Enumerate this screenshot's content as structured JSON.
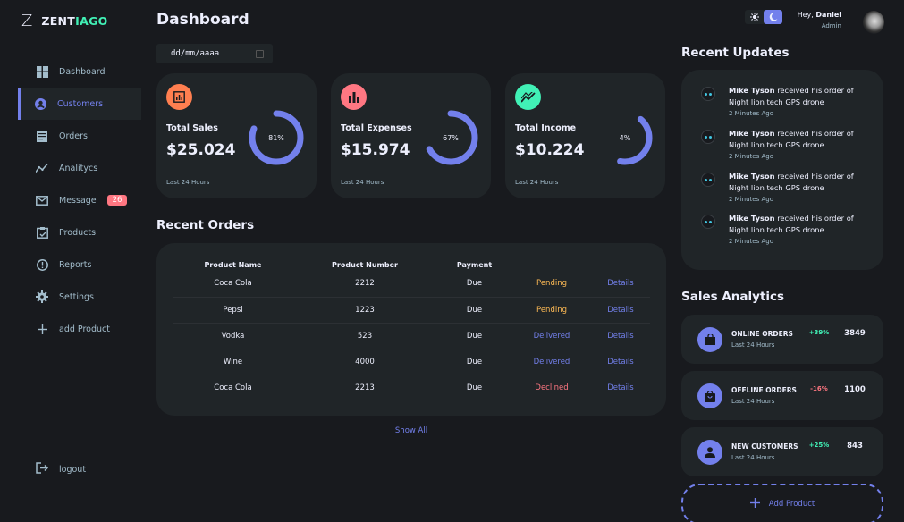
{
  "brand": {
    "mark": "Z",
    "name_a": "ZENT",
    "name_b": "IAGO"
  },
  "sidebar": {
    "items": [
      {
        "label": "Dashboard",
        "icon": "grid-icon"
      },
      {
        "label": "Customers",
        "icon": "user-circle-icon"
      },
      {
        "label": "Orders",
        "icon": "receipt-icon"
      },
      {
        "label": "Analitycs",
        "icon": "chart-line-icon"
      },
      {
        "label": "Message",
        "icon": "mail-icon",
        "badge": "26"
      },
      {
        "label": "Products",
        "icon": "inventory-icon"
      },
      {
        "label": "Reports",
        "icon": "warning-icon"
      },
      {
        "label": "Settings",
        "icon": "gear-icon"
      },
      {
        "label": "add Product",
        "icon": "plus-icon"
      }
    ],
    "logout": "logout"
  },
  "main": {
    "title": "Dashboard",
    "date_placeholder": "dd/mm/aaaa",
    "cards": [
      {
        "label": "Total Sales",
        "value": "$25.024",
        "percent": "81%",
        "fraction": 0.81,
        "foot": "Last 24 Hours",
        "color": "#ff7f50"
      },
      {
        "label": "Total Expenses",
        "value": "$15.974",
        "percent": "67%",
        "fraction": 0.67,
        "foot": "Last 24 Hours",
        "color": "#ff7782"
      },
      {
        "label": "Total Income",
        "value": "$10.224",
        "percent": "4%",
        "fraction": 0.04,
        "foot": "Last 24 Hours",
        "color": "#41f1b6"
      }
    ],
    "recent_orders": {
      "title": "Recent Orders",
      "headers": [
        "Product Name",
        "Product Number",
        "Payment",
        "",
        ""
      ],
      "rows": [
        {
          "name": "Coca Cola",
          "number": "2212",
          "payment": "Due",
          "status": "Pending",
          "action": "Details"
        },
        {
          "name": "Pepsi",
          "number": "1223",
          "payment": "Due",
          "status": "Pending",
          "action": "Details"
        },
        {
          "name": "Vodka",
          "number": "523",
          "payment": "Due",
          "status": "Delivered",
          "action": "Details"
        },
        {
          "name": "Wine",
          "number": "4000",
          "payment": "Due",
          "status": "Delivered",
          "action": "Details"
        },
        {
          "name": "Coca Cola",
          "number": "2213",
          "payment": "Due",
          "status": "Declined",
          "action": "Details"
        }
      ],
      "show_all": "Show All"
    }
  },
  "topbar": {
    "greeting": "Hey,",
    "user": "Daniel",
    "role": "Admin"
  },
  "updates": {
    "title": "Recent Updates",
    "items": [
      {
        "name": "Mike Tyson",
        "text": "received his order of Night lion tech GPS drone",
        "time": "2 Minutes Ago"
      },
      {
        "name": "Mike Tyson",
        "text": "received his order of Night lion tech GPS drone",
        "time": "2 Minutes Ago"
      },
      {
        "name": "Mike Tyson",
        "text": "received his order of Night lion tech GPS drone",
        "time": "2 Minutes Ago"
      },
      {
        "name": "Mike Tyson",
        "text": "received his order of Night lion tech GPS drone",
        "time": "2 Minutes Ago"
      }
    ]
  },
  "analytics": {
    "title": "Sales Analytics",
    "items": [
      {
        "name": "ONLINE ORDERS",
        "foot": "Last 24 Hours",
        "change": "+39%",
        "value": "3849",
        "icon": "shopping-bag-icon"
      },
      {
        "name": "OFFLINE ORDERS",
        "foot": "Last 24 Hours",
        "change": "-16%",
        "value": "1100",
        "icon": "local-mall-icon"
      },
      {
        "name": "NEW CUSTOMERS",
        "foot": "Last 24 Hours",
        "change": "+25%",
        "value": "843",
        "icon": "person-icon"
      }
    ],
    "add_product": "Add Product"
  },
  "colors": {
    "primary": "#7380ec",
    "danger": "#ff7782",
    "success": "#41f1b6",
    "warning": "#ffbb55",
    "background": "#181a1e",
    "panel": "#202528"
  }
}
